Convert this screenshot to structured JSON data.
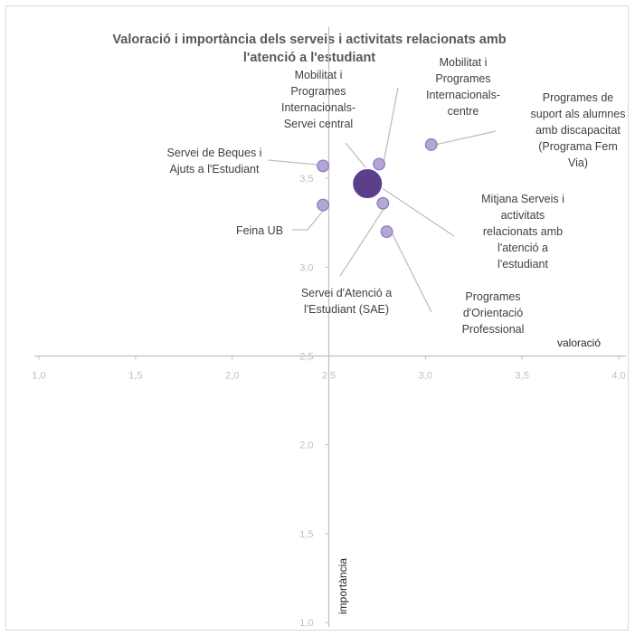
{
  "chart_data": {
    "type": "bubble",
    "title_lines": [
      "Valoració i importància dels serveis i activitats relacionats amb",
      "l'atenció a l'estudiant"
    ],
    "xlabel": "valoració",
    "ylabel": "importància",
    "xlim": [
      1.0,
      4.0
    ],
    "ylim": [
      1.0,
      4.0
    ],
    "axis_crossing": {
      "x": 2.5,
      "y": 2.5
    },
    "x_ticks": [
      "1,0",
      "1,5",
      "2,0",
      "2,5",
      "3,0",
      "3,5",
      "4,0"
    ],
    "y_ticks": [
      "1,0",
      "1,5",
      "2,0",
      "2,5",
      "3,0",
      "3,5"
    ],
    "grid": false,
    "colors": {
      "point": "#b4a7d6",
      "point_stroke": "#8e7cc3",
      "average": "#5b3f8c",
      "leader": "#bfbfbf",
      "tick": "#bfbfbf",
      "axis": "#bfbfbf"
    },
    "points": [
      {
        "name": "Servei de Beques i Ajuts a l'Estudiant",
        "x": 2.47,
        "y": 3.57,
        "size": 1,
        "label_lines": [
          "Servei de Beques i",
          "Ajuts a l'Estudiant"
        ]
      },
      {
        "name": "Feina UB",
        "x": 2.47,
        "y": 3.35,
        "size": 1,
        "label_lines": [
          "Feina UB"
        ]
      },
      {
        "name": "Mobilitat i Programes Internacionals-centre",
        "x": 2.76,
        "y": 3.58,
        "size": 1,
        "label_lines": [
          "Mobilitat i",
          "Programes",
          "Internacionals-",
          "centre"
        ]
      },
      {
        "name": "Programes de suport als alumnes amb discapacitat (Programa Fem Via)",
        "x": 3.03,
        "y": 3.69,
        "size": 1,
        "label_lines": [
          "Programes de",
          "suport als alumnes",
          "amb discapacitat",
          "(Programa Fem",
          "Via)"
        ]
      },
      {
        "name": "Servei d'Atenció a l'Estudiant (SAE)",
        "x": 2.78,
        "y": 3.36,
        "size": 1,
        "label_lines": [
          "Servei d'Atenció a",
          "l'Estudiant (SAE)"
        ]
      },
      {
        "name": "Programes d'Orientació Professional",
        "x": 2.8,
        "y": 3.2,
        "size": 1,
        "label_lines": [
          "Programes",
          "d'Orientació",
          "Professional"
        ]
      },
      {
        "name": "Mobilitat i Programes Internacionals-Servei central",
        "x": 2.7,
        "y": 3.47,
        "size": 4,
        "label_lines": [
          "Mobilitat i",
          "Programes",
          "Internacionals-",
          "Servei central"
        ]
      },
      {
        "name": "Mitjana Serveis i activitats relacionats amb l'atenció a l'estudiant",
        "x": 2.7,
        "y": 3.47,
        "size": 4,
        "label_lines": [
          "Mitjana Serveis i",
          "activitats",
          "relacionats amb",
          "l'atenció a",
          "l'estudiant"
        ]
      }
    ]
  }
}
